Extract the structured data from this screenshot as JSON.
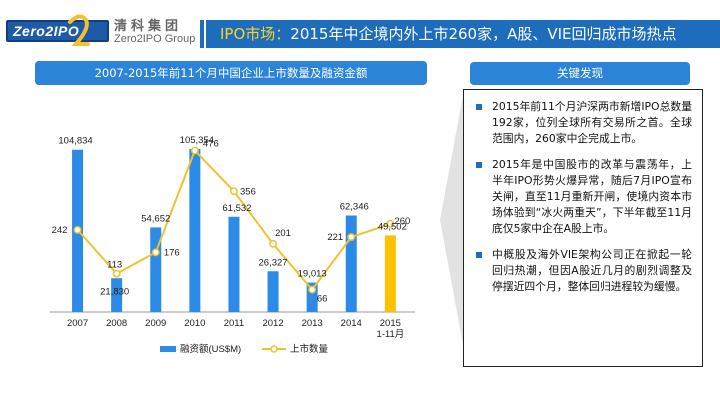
{
  "header": {
    "logo_text": "Zero2IPO",
    "group_cn": "清科集团",
    "group_en": "Zero2IPO Group",
    "title_prefix": "IPO市场：",
    "title_main": "2015年中企境内外上市260家，A股、VIE回归成市场热点"
  },
  "chart_panel": {
    "heading": "2007-2015年前11个月中国企业上市数量及融资金额"
  },
  "chart_data": {
    "type": "bar+line",
    "categories": [
      "2007",
      "2008",
      "2009",
      "2010",
      "2011",
      "2012",
      "2013",
      "2014",
      "2015"
    ],
    "category_sublabels": [
      "",
      "",
      "",
      "",
      "",
      "",
      "",
      "",
      "1-11月"
    ],
    "series": [
      {
        "name": "融资额(US$M)",
        "type": "bar",
        "axis": "left",
        "values": [
          104834,
          21830,
          54652,
          105354,
          61532,
          26327,
          19013,
          62346,
          49502
        ],
        "labels": [
          "104,834",
          "21,830",
          "54,652",
          "105,354",
          "61,532",
          "26,327",
          "19,013",
          "62,346",
          "49,502"
        ],
        "color": "#2b8be6",
        "highlight_color": "#ffc000",
        "highlight_index": 8
      },
      {
        "name": "上市数量",
        "type": "line",
        "axis": "right",
        "values": [
          242,
          113,
          176,
          476,
          356,
          201,
          66,
          221,
          260
        ],
        "labels": [
          "242",
          "113",
          "176",
          "476",
          "356",
          "201",
          "66",
          "221",
          "260"
        ],
        "color": "#f2c12e"
      }
    ],
    "ylim_left": [
      0,
      115000
    ],
    "ylim_right": [
      0,
      525
    ],
    "legend_position": "bottom"
  },
  "side_panel": {
    "heading": "关键发现",
    "points": [
      "2015年前11个月沪深两市新增IPO总数量192家，位列全球所有交易所之首。全球范围内，260家中企完成上市。",
      "2015年是中国股市的改革与震荡年，上半年IPO形势火爆异常，随后7月IPO宣布关闸，直至11月重新开闸，使境内资本市场体验到“冰火两重天”，下半年截至11月底仅5家中企在A股上市。",
      "中概股及海外VIE架构公司正在掀起一轮回归热潮，但因A股近几月的剧烈调整及停摆近四个月，整体回归进程较为缓慢。"
    ]
  }
}
